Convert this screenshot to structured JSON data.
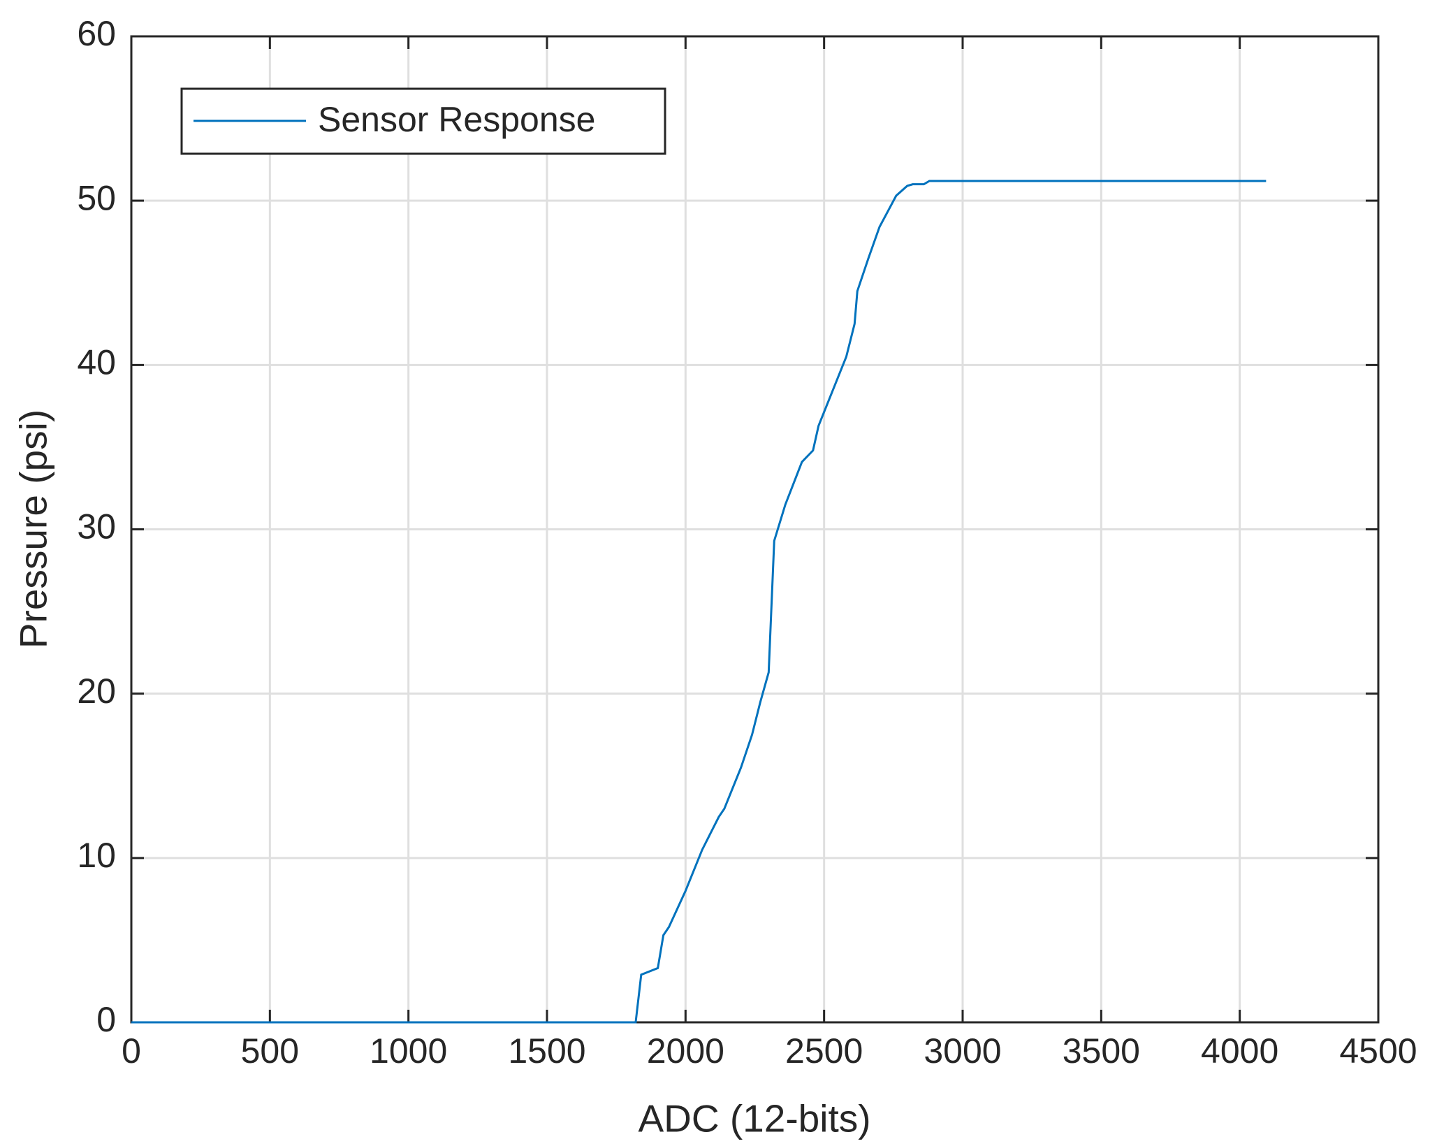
{
  "chart_data": {
    "type": "line",
    "xlabel": "ADC (12-bits)",
    "ylabel": "Pressure (psi)",
    "x": [
      0,
      1820,
      1840,
      1900,
      1920,
      1940,
      2000,
      2060,
      2120,
      2140,
      2200,
      2240,
      2270,
      2300,
      2320,
      2360,
      2420,
      2460,
      2480,
      2580,
      2610,
      2620,
      2660,
      2700,
      2760,
      2800,
      2820,
      2860,
      2880,
      4095
    ],
    "series": [
      {
        "name": "Sensor Response",
        "color": "#0072bd",
        "values": [
          0,
          0,
          2.9,
          3.3,
          5.3,
          5.8,
          8,
          10.5,
          12.5,
          13,
          15.5,
          17.5,
          19.5,
          21.3,
          29.3,
          31.5,
          34.1,
          34.8,
          36.3,
          40.5,
          42.5,
          44.5,
          46.5,
          48.4,
          50.3,
          50.9,
          51,
          51,
          51.2,
          51.2
        ]
      }
    ],
    "xlim": [
      0,
      4500
    ],
    "xticks": [
      0,
      500,
      1000,
      1500,
      2000,
      2500,
      3000,
      3500,
      4000,
      4500
    ],
    "ylim": [
      0,
      60
    ],
    "yticks": [
      0,
      10,
      20,
      30,
      40,
      50,
      60
    ],
    "grid": true,
    "legend": "upper-left"
  }
}
